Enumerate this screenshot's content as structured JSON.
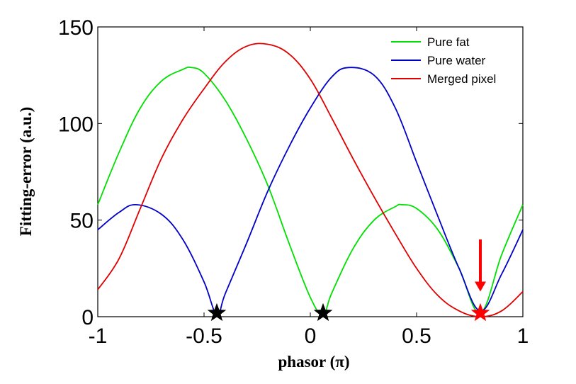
{
  "chart_data": {
    "type": "line",
    "xlabel": "phasor (π)",
    "ylabel": "Fitting-error (a.u.)",
    "xlim": [
      -1,
      1
    ],
    "ylim": [
      0,
      150
    ],
    "xticks": [
      -1,
      -0.5,
      0,
      0.5,
      1
    ],
    "xtick_labels": [
      "-1",
      "-0.5",
      "0",
      "0.5",
      "1"
    ],
    "yticks": [
      0,
      50,
      100,
      150
    ],
    "ytick_labels": [
      "0",
      "50",
      "100",
      "150"
    ],
    "grid": false,
    "legend_position": "top-right",
    "series": [
      {
        "name": "Pure fat",
        "color": "#00e000",
        "x": [
          -1.0,
          -0.9,
          -0.8,
          -0.7,
          -0.6,
          -0.56,
          -0.5,
          -0.4,
          -0.3,
          -0.2,
          -0.1,
          0.0,
          0.06,
          0.1,
          0.2,
          0.3,
          0.4,
          0.43,
          0.5,
          0.6,
          0.7,
          0.8,
          0.9,
          1.0
        ],
        "values": [
          58,
          85,
          108,
          122,
          128,
          129,
          126,
          112,
          92,
          68,
          38,
          10,
          1,
          12,
          35,
          50,
          57,
          58,
          56,
          45,
          25,
          2,
          32,
          58
        ]
      },
      {
        "name": "Pure water",
        "color": "#0000c8",
        "x": [
          -1.0,
          -0.9,
          -0.82,
          -0.7,
          -0.6,
          -0.5,
          -0.44,
          -0.4,
          -0.3,
          -0.2,
          -0.1,
          0.0,
          0.1,
          0.18,
          0.3,
          0.4,
          0.5,
          0.6,
          0.7,
          0.8,
          0.9,
          1.0
        ],
        "values": [
          45,
          54,
          58,
          53,
          40,
          18,
          1,
          12,
          38,
          65,
          88,
          108,
          124,
          129,
          125,
          108,
          80,
          52,
          25,
          3,
          22,
          45
        ]
      },
      {
        "name": "Merged pixel",
        "color": "#e00000",
        "x": [
          -1.0,
          -0.9,
          -0.8,
          -0.7,
          -0.6,
          -0.5,
          -0.4,
          -0.3,
          -0.2,
          -0.1,
          0.0,
          0.1,
          0.2,
          0.3,
          0.4,
          0.5,
          0.6,
          0.7,
          0.8,
          0.9,
          1.0
        ],
        "values": [
          14,
          30,
          56,
          82,
          102,
          118,
          132,
          140,
          141,
          136,
          123,
          103,
          82,
          62,
          43,
          25,
          11,
          3,
          0,
          3,
          13
        ]
      }
    ],
    "markers": [
      {
        "x": -0.44,
        "y": 0.8,
        "shape": "star",
        "color": "#000000"
      },
      {
        "x": 0.06,
        "y": 0.8,
        "shape": "star",
        "color": "#000000"
      },
      {
        "x": 0.8,
        "y": 0.8,
        "shape": "star",
        "color": "#ff0000"
      }
    ],
    "arrow": {
      "x": 0.8,
      "y_from": 40,
      "y_to": 13,
      "color": "#ff0000"
    }
  }
}
